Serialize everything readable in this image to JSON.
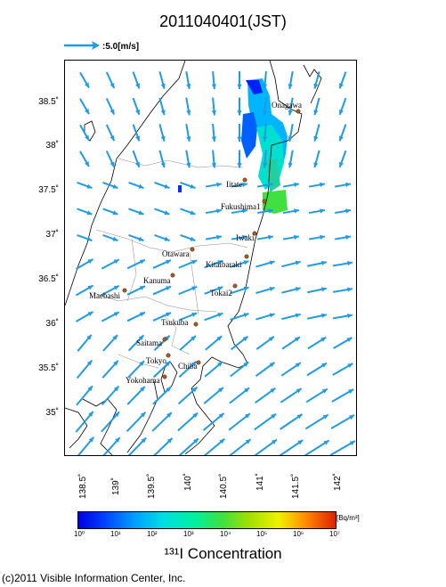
{
  "title": "2011040401(JST)",
  "wind_legend": {
    "label": ":5.0[m/s]",
    "speed": 5.0,
    "unit": "m/s"
  },
  "lat_ticks": [
    "38.5˚",
    "38˚",
    "37.5˚",
    "37˚",
    "36.5˚",
    "36˚",
    "35.5˚",
    "35˚"
  ],
  "lon_ticks": [
    "138.5˚",
    "139˚",
    "139.5˚",
    "140˚",
    "140.5˚",
    "141˚",
    "141.5˚",
    "142˚"
  ],
  "cities": [
    "Onagawa",
    "Iitate",
    "Fukushima1",
    "Iwaki",
    "Otawara",
    "Kitaibaraki",
    "Kanuma",
    "Tokai2",
    "Maebashi",
    "Tsukuba",
    "Saitama",
    "Tokyo",
    "Chiba",
    "Yokohama"
  ],
  "colorbar": {
    "ticks": [
      "10⁰",
      "10¹",
      "10²",
      "10³",
      "10⁴",
      "10⁵",
      "10⁶",
      "10⁷"
    ],
    "unit": "[Bq/m³]",
    "colors": [
      "#0000e0",
      "#00a0ff",
      "#00e0e0",
      "#40e040",
      "#f0f000",
      "#ff9000",
      "#e02000"
    ]
  },
  "xlabel": "¹³¹I Concentration",
  "copyright": "(c)2011 Visible Information Center, Inc.",
  "colors": {
    "arrow": "#1e9be8",
    "coast": "#000000",
    "city_dot": "#b05a1a"
  }
}
